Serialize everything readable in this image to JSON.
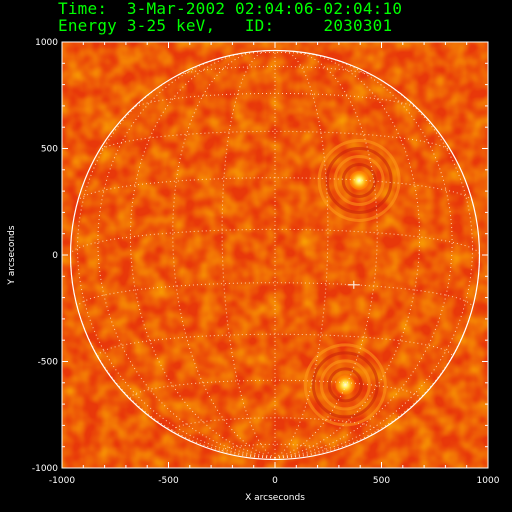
{
  "header": {
    "time_line": "Time:  3-Mar-2002 02:04:06-02:04:10",
    "energy_line": "Energy 3-25 keV,   ID:     2030301",
    "text_color": "#00ff00"
  },
  "plot": {
    "xlabel": "X arcseconds",
    "ylabel": "Y arcseconds",
    "xlim": [
      -1000,
      1000
    ],
    "ylim": [
      -1000,
      1000
    ],
    "xticks": [
      "-1000",
      "-500",
      "0",
      "500",
      "1000"
    ],
    "yticks": [
      "-1000",
      "-500",
      "0",
      "500",
      "1000"
    ],
    "xtick_values": [
      -1000,
      -500,
      0,
      500,
      1000
    ],
    "ytick_values": [
      -1000,
      -500,
      0,
      500,
      1000
    ],
    "solar_radius_arcsec": 960,
    "limb_color": "#ffffff",
    "colormap": "red-temperature",
    "sources": [
      {
        "name": "north-source",
        "x": 395,
        "y": 350
      },
      {
        "name": "south-source",
        "x": 330,
        "y": -610
      },
      {
        "name": "marker",
        "x": 370,
        "y": -140
      }
    ]
  }
}
